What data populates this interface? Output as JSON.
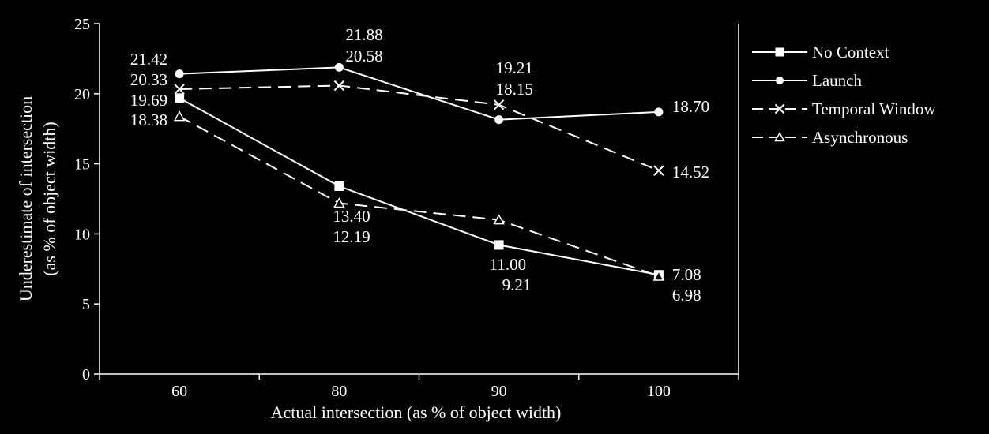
{
  "chart_data": {
    "type": "line",
    "title": "",
    "xlabel": "Actual intersection (as % of object width)",
    "ylabel": [
      "Underestimate of intersection",
      "(as % of object width)"
    ],
    "categories": [
      "60",
      "80",
      "90",
      "100"
    ],
    "ylim": [
      0,
      25
    ],
    "yticks": [
      "0",
      "5",
      "10",
      "15",
      "20",
      "25"
    ],
    "grid": false,
    "legend_position": "right",
    "series": [
      {
        "name": "No Context",
        "marker": "square",
        "dash": "solid",
        "values": [
          19.69,
          13.4,
          9.21,
          7.08
        ]
      },
      {
        "name": "Launch",
        "marker": "circle",
        "dash": "solid",
        "values": [
          21.42,
          21.88,
          18.15,
          18.7
        ]
      },
      {
        "name": "Temporal Window",
        "marker": "x",
        "dash": "dashed",
        "values": [
          20.33,
          20.58,
          19.21,
          14.52
        ]
      },
      {
        "name": "Asynchronous",
        "marker": "triangle",
        "dash": "dashed",
        "values": [
          18.38,
          12.19,
          11.0,
          6.98
        ]
      }
    ],
    "annotations": [
      {
        "text": "21.42",
        "series": 1,
        "point": 0
      },
      {
        "text": "20.33",
        "series": 2,
        "point": 0
      },
      {
        "text": "19.69",
        "series": 0,
        "point": 0
      },
      {
        "text": "18.38",
        "series": 3,
        "point": 0
      },
      {
        "text": "21.88",
        "series": 1,
        "point": 1
      },
      {
        "text": "20.58",
        "series": 2,
        "point": 1
      },
      {
        "text": "13.40",
        "series": 0,
        "point": 1
      },
      {
        "text": "12.19",
        "series": 3,
        "point": 1
      },
      {
        "text": "19.21",
        "series": 2,
        "point": 2
      },
      {
        "text": "18.15",
        "series": 1,
        "point": 2
      },
      {
        "text": "11.00",
        "series": 3,
        "point": 2
      },
      {
        "text": "9.21",
        "series": 0,
        "point": 2
      },
      {
        "text": "18.70",
        "series": 1,
        "point": 3
      },
      {
        "text": "14.52",
        "series": 2,
        "point": 3
      },
      {
        "text": "7.08",
        "series": 0,
        "point": 3
      },
      {
        "text": "6.98",
        "series": 3,
        "point": 3
      }
    ],
    "colors": {
      "background": "#000000",
      "foreground": "#ffffff"
    }
  }
}
